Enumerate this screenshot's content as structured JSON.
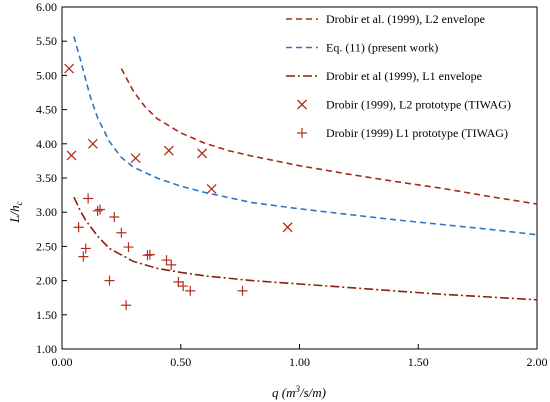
{
  "chart_data": {
    "type": "scatter",
    "x_axis": {
      "label_parts": [
        "q (m",
        "3",
        "/s/m)"
      ],
      "range": [
        0,
        2.0
      ],
      "ticks": [
        "0.00",
        "0.50",
        "1.00",
        "1.50",
        "2.00"
      ],
      "tick_values": [
        0,
        0.5,
        1.0,
        1.5,
        2.0
      ]
    },
    "y_axis": {
      "label_parts": [
        "L/h",
        "c"
      ],
      "range": [
        1.0,
        6.0
      ],
      "ticks": [
        "1.00",
        "1.50",
        "2.00",
        "2.50",
        "3.00",
        "3.50",
        "4.00",
        "4.50",
        "5.00",
        "5.50",
        "6.00"
      ],
      "tick_values": [
        1.0,
        1.5,
        2.0,
        2.5,
        3.0,
        3.5,
        4.0,
        4.5,
        5.0,
        5.5,
        6.0
      ]
    },
    "grid": false,
    "legend_position": "top-right",
    "series": [
      {
        "name": "Drobir et al. (1999),  L2 envelope",
        "kind": "line",
        "style": "dashed",
        "color": "#a52a1a",
        "points": [
          [
            0.25,
            5.1
          ],
          [
            0.3,
            4.77
          ],
          [
            0.35,
            4.54
          ],
          [
            0.4,
            4.37
          ],
          [
            0.5,
            4.16
          ],
          [
            0.6,
            4.01
          ],
          [
            0.7,
            3.9
          ],
          [
            0.8,
            3.82
          ],
          [
            0.9,
            3.75
          ],
          [
            1.0,
            3.68
          ],
          [
            1.2,
            3.56
          ],
          [
            1.4,
            3.45
          ],
          [
            1.6,
            3.35
          ],
          [
            1.8,
            3.23
          ],
          [
            2.0,
            3.12
          ]
        ]
      },
      {
        "name": "Eq. (11) (present work)",
        "kind": "line",
        "style": "dashed",
        "color": "#2e75c9",
        "points": [
          [
            0.05,
            5.57
          ],
          [
            0.08,
            5.2
          ],
          [
            0.1,
            4.93
          ],
          [
            0.12,
            4.68
          ],
          [
            0.15,
            4.38
          ],
          [
            0.2,
            4.03
          ],
          [
            0.25,
            3.8
          ],
          [
            0.3,
            3.66
          ],
          [
            0.4,
            3.5
          ],
          [
            0.5,
            3.38
          ],
          [
            0.6,
            3.29
          ],
          [
            0.8,
            3.14
          ],
          [
            1.0,
            3.05
          ],
          [
            1.2,
            2.97
          ],
          [
            1.4,
            2.89
          ],
          [
            1.6,
            2.82
          ],
          [
            1.8,
            2.75
          ],
          [
            2.0,
            2.67
          ]
        ]
      },
      {
        "name": "Drobir et al (1999),  L1 envelope",
        "kind": "line",
        "style": "dashdot",
        "color": "#8b1f10",
        "points": [
          [
            0.05,
            3.22
          ],
          [
            0.08,
            3.0
          ],
          [
            0.1,
            2.88
          ],
          [
            0.15,
            2.65
          ],
          [
            0.2,
            2.47
          ],
          [
            0.3,
            2.28
          ],
          [
            0.4,
            2.18
          ],
          [
            0.5,
            2.12
          ],
          [
            0.6,
            2.07
          ],
          [
            0.8,
            2.0
          ],
          [
            1.0,
            1.95
          ],
          [
            1.2,
            1.9
          ],
          [
            1.4,
            1.85
          ],
          [
            1.6,
            1.8
          ],
          [
            1.8,
            1.76
          ],
          [
            2.0,
            1.72
          ]
        ]
      },
      {
        "name": "Drobir (1999), L2 prototype (TIWAG)",
        "kind": "marker",
        "marker": "x",
        "color": "#b03020",
        "points": [
          [
            0.03,
            5.1
          ],
          [
            0.04,
            3.83
          ],
          [
            0.13,
            4.0
          ],
          [
            0.31,
            3.79
          ],
          [
            0.45,
            3.9
          ],
          [
            0.59,
            3.86
          ],
          [
            0.63,
            3.34
          ],
          [
            0.95,
            2.78
          ]
        ]
      },
      {
        "name": "Drobir (1999) L1 prototype (TIWAG)",
        "kind": "marker",
        "marker": "plus",
        "color": "#b03020",
        "points": [
          [
            0.07,
            2.78
          ],
          [
            0.09,
            2.35
          ],
          [
            0.1,
            2.47
          ],
          [
            0.11,
            3.2
          ],
          [
            0.15,
            3.02
          ],
          [
            0.16,
            3.04
          ],
          [
            0.2,
            2.0
          ],
          [
            0.22,
            2.93
          ],
          [
            0.25,
            2.7
          ],
          [
            0.27,
            1.64
          ],
          [
            0.28,
            2.49
          ],
          [
            0.36,
            2.37
          ],
          [
            0.37,
            2.38
          ],
          [
            0.44,
            2.3
          ],
          [
            0.46,
            2.23
          ],
          [
            0.49,
            1.98
          ],
          [
            0.51,
            1.92
          ],
          [
            0.54,
            1.85
          ],
          [
            0.76,
            1.85
          ]
        ]
      }
    ]
  }
}
